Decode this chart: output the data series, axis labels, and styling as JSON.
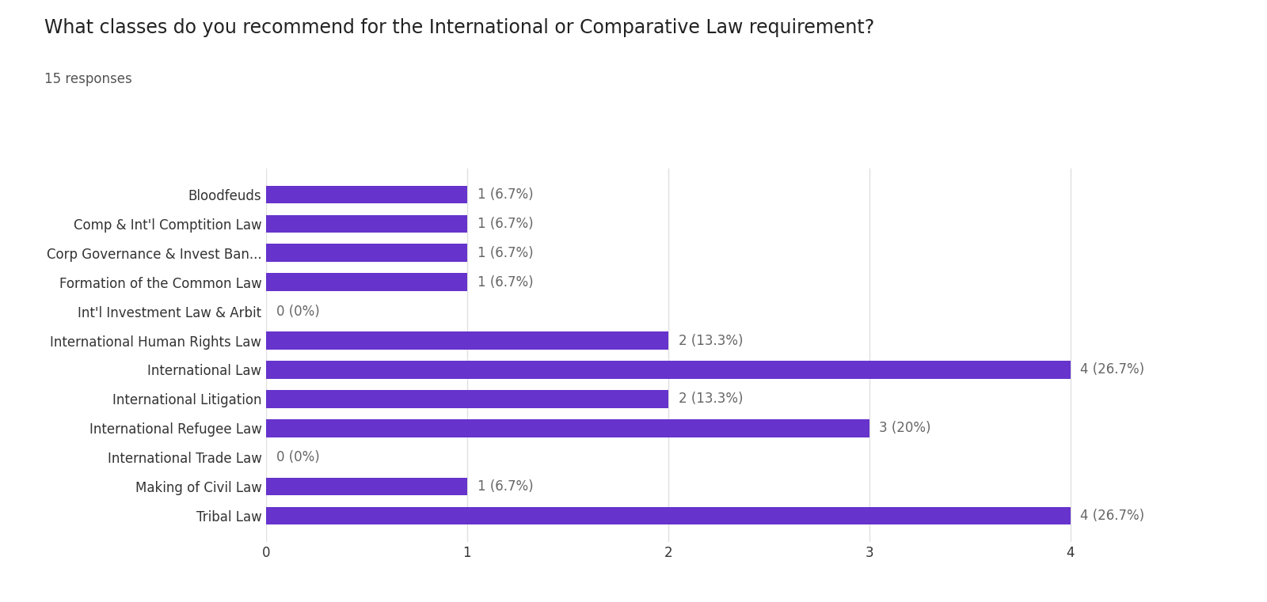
{
  "title": "What classes do you recommend for the International or Comparative Law requirement?",
  "subtitle": "15 responses",
  "categories": [
    "Bloodfeuds",
    "Comp & Int'l Comptition Law",
    "Corp Governance & Invest Ban...",
    "Formation of the Common Law",
    "Int'l Investment Law & Arbit",
    "International Human Rights Law",
    "International Law",
    "International Litigation",
    "International Refugee Law",
    "International Trade Law",
    "Making of Civil Law",
    "Tribal Law"
  ],
  "values": [
    1,
    1,
    1,
    1,
    0,
    2,
    4,
    2,
    3,
    0,
    1,
    4
  ],
  "labels": [
    "1 (6.7%)",
    "1 (6.7%)",
    "1 (6.7%)",
    "1 (6.7%)",
    "0 (0%)",
    "2 (13.3%)",
    "4 (26.7%)",
    "2 (13.3%)",
    "3 (20%)",
    "0 (0%)",
    "1 (6.7%)",
    "4 (26.7%)"
  ],
  "bar_color": "#6633cc",
  "background_color": "#ffffff",
  "grid_color": "#e0e0e0",
  "title_fontsize": 17,
  "subtitle_fontsize": 12,
  "label_fontsize": 12,
  "tick_fontsize": 12,
  "xlim": [
    0,
    4.6
  ],
  "xticks": [
    0,
    1,
    2,
    3,
    4
  ]
}
